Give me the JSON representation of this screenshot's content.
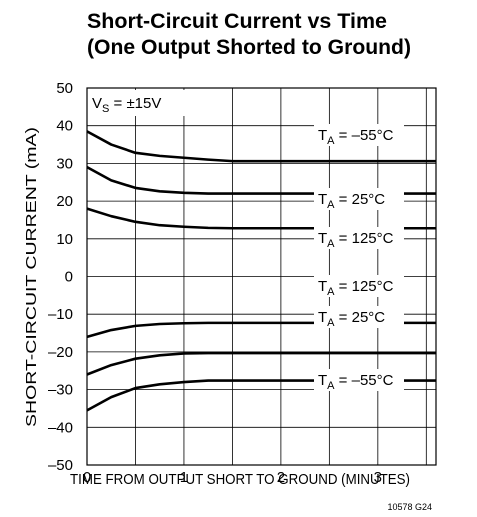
{
  "chart_data": {
    "type": "line",
    "title": [
      "Short-Circuit Current vs Time",
      "(One Output Shorted to Ground)"
    ],
    "xlabel": "TIME FROM OUTPUT SHORT TO GROUND (MINUTES)",
    "ylabel": "SHORT-CIRCUIT CURRENT (mA)",
    "condition": [
      "V",
      "S",
      " = ±15V"
    ],
    "footnote": "10578 G24",
    "xlim": [
      0,
      3.6
    ],
    "xticks": [
      0,
      1,
      2,
      3
    ],
    "xminor": [
      0.5,
      1.5,
      2.5,
      3.5
    ],
    "ylim": [
      -50,
      50
    ],
    "yticks": [
      50,
      40,
      30,
      20,
      10,
      0,
      {
        "value": -10,
        "label": "–10"
      },
      {
        "value": -20,
        "label": "–20"
      },
      {
        "value": -30,
        "label": "–30"
      },
      {
        "value": -40,
        "label": "–40"
      },
      {
        "value": -50,
        "label": "–50"
      }
    ],
    "grid": true,
    "x": [
      0,
      0.25,
      0.5,
      0.75,
      1,
      1.25,
      1.5,
      2,
      2.5,
      3,
      3.6
    ],
    "series": [
      {
        "name": [
          "T",
          "A",
          " = –55°C"
        ],
        "color": "#000000",
        "values": [
          38.5,
          35,
          32.8,
          32,
          31.5,
          31,
          30.6,
          30.6,
          30.6,
          30.6,
          30.6
        ]
      },
      {
        "name": [
          "T",
          "A",
          " = 25°C"
        ],
        "color": "#000000",
        "values": [
          29,
          25.5,
          23.5,
          22.6,
          22.2,
          22,
          22,
          22,
          22,
          22,
          22
        ]
      },
      {
        "name": [
          "T",
          "A",
          " = 125°C"
        ],
        "color": "#000000",
        "values": [
          18,
          16,
          14.5,
          13.6,
          13.2,
          12.9,
          12.8,
          12.8,
          12.8,
          12.8,
          12.8
        ]
      },
      {
        "name": [
          "T",
          "A",
          " = 125°C"
        ],
        "color": "#000000",
        "values": [
          -16,
          -14.2,
          -13.1,
          -12.6,
          -12.4,
          -12.3,
          -12.3,
          -12.3,
          -12.3,
          -12.3,
          -12.3
        ]
      },
      {
        "name": [
          "T",
          "A",
          " = 25°C"
        ],
        "color": "#000000",
        "values": [
          -26,
          -23.5,
          -21.8,
          -20.9,
          -20.4,
          -20.3,
          -20.3,
          -20.3,
          -20.3,
          -20.3,
          -20.3
        ]
      },
      {
        "name": [
          "T",
          "A",
          " = –55°C"
        ],
        "color": "#000000",
        "values": [
          -35.5,
          -32,
          -29.6,
          -28.6,
          -28,
          -27.6,
          -27.6,
          -27.6,
          -27.6,
          -27.6,
          -27.6
        ]
      }
    ]
  }
}
